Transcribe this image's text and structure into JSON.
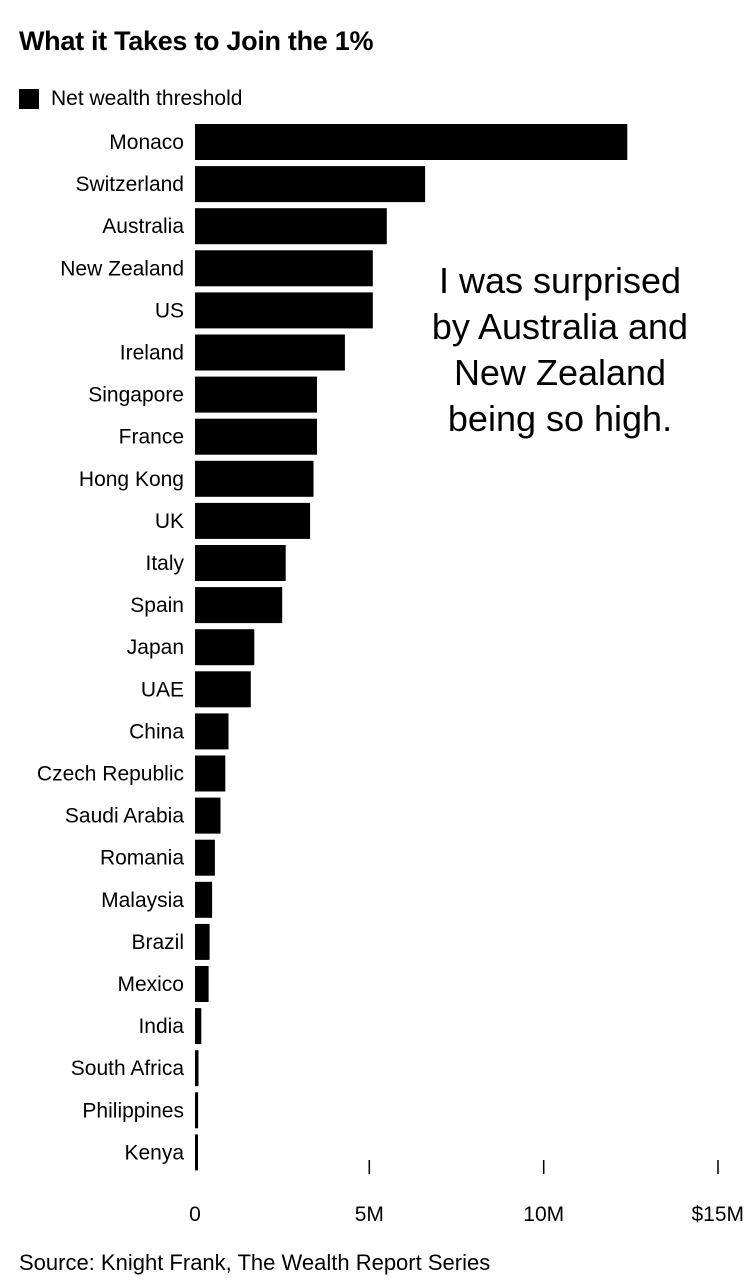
{
  "chart_data": {
    "type": "bar",
    "orientation": "horizontal",
    "title": "What it Takes to Join the 1%",
    "legend": [
      "Net wealth threshold"
    ],
    "legend_placement": "top-left",
    "categories": [
      "Monaco",
      "Switzerland",
      "Australia",
      "New Zealand",
      "US",
      "Ireland",
      "Singapore",
      "France",
      "Hong Kong",
      "UK",
      "Italy",
      "Spain",
      "Japan",
      "UAE",
      "China",
      "Czech Republic",
      "Saudi Arabia",
      "Romania",
      "Malaysia",
      "Brazil",
      "Mexico",
      "India",
      "South Africa",
      "Philippines",
      "Kenya"
    ],
    "series": [
      {
        "name": "Net wealth threshold",
        "color": "#000000",
        "values": [
          12.4,
          6.6,
          5.5,
          5.1,
          5.1,
          4.3,
          3.5,
          3.5,
          3.4,
          3.3,
          2.6,
          2.5,
          1.7,
          1.6,
          0.96,
          0.87,
          0.73,
          0.57,
          0.49,
          0.42,
          0.39,
          0.18,
          0.1,
          0.09,
          0.08
        ]
      }
    ],
    "value_unit": "millions USD",
    "xlim": [
      0,
      15
    ],
    "xticks": [
      0,
      5,
      10,
      15
    ],
    "xtick_labels": [
      "0",
      "5M",
      "10M",
      "$15M"
    ],
    "grid": false,
    "annotation": [
      "I was surprised",
      "by Australia and",
      "New Zealand",
      "being so high."
    ],
    "source": "Source: Knight Frank, The Wealth Report Series"
  }
}
